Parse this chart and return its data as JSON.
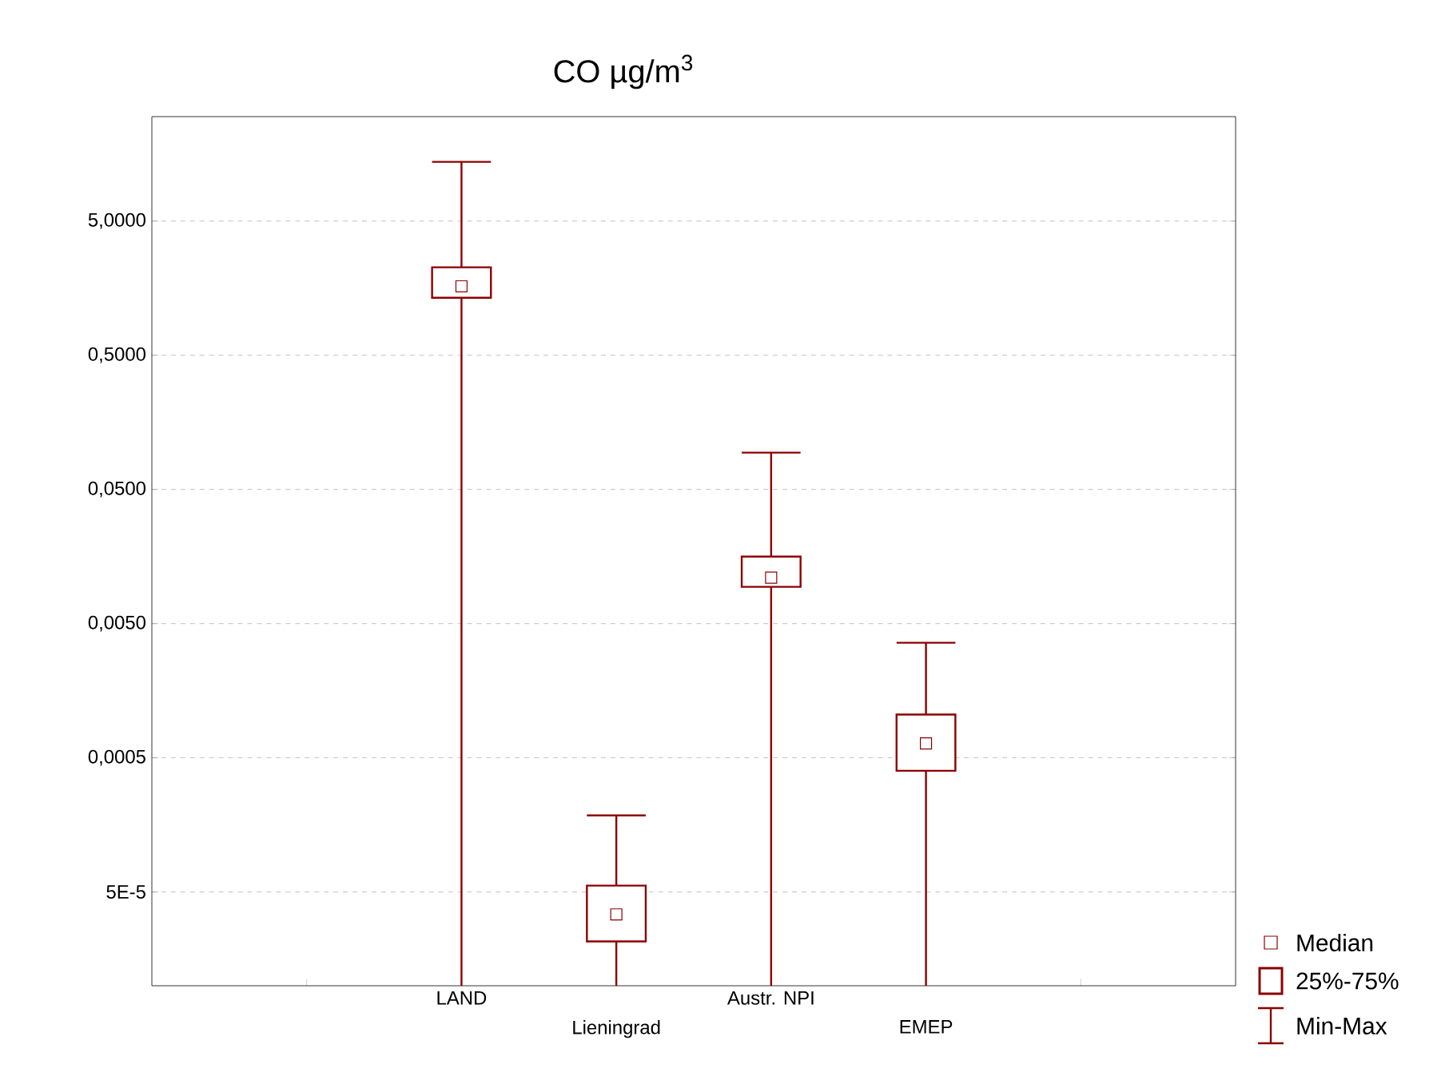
{
  "chart_data": {
    "type": "box",
    "title": "CO µg/m$^{3}$",
    "categories": [
      null,
      "LAND",
      "Lieningrad",
      "Austr. NPI",
      "EMEP",
      null
    ],
    "boxes": [
      null,
      {
        "low": 1e-05,
        "q1": 1.34,
        "median": 1.63,
        "q3": 2.26,
        "high": 13.8
      },
      {
        "low": 1e-05,
        "q1": 2.14e-05,
        "median": 3.4e-05,
        "q3": 5.58e-05,
        "high": 0.000186
      },
      {
        "low": 1e-05,
        "q1": 0.0094,
        "median": 0.011,
        "q3": 0.0158,
        "high": 0.094
      },
      {
        "low": 1e-05,
        "q1": 0.0004,
        "median": 0.00064,
        "q3": 0.00105,
        "high": 0.0036
      },
      null
    ],
    "color": "#8b0000",
    "log": "y",
    "ylim": [
      1e-05,
      30
    ],
    "yticks": [
      {
        "value": 5e-05,
        "label": "5E-5"
      },
      {
        "value": 0.0005,
        "label": "0,0005"
      },
      {
        "value": 0.005,
        "label": "0,0050"
      },
      {
        "value": 0.05,
        "label": "0,0500"
      },
      {
        "value": 0.5,
        "label": "0,5000"
      },
      {
        "value": 5,
        "label": "5,0000"
      }
    ],
    "grid": "y",
    "annotations": [
      "Median",
      "25%-75%",
      "Min-Max"
    ]
  }
}
